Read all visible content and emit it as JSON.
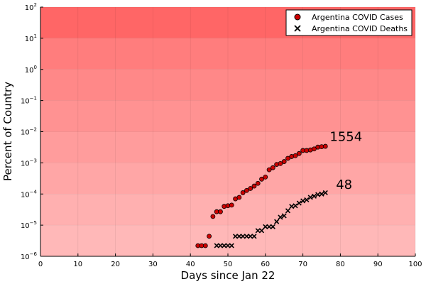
{
  "chart_data": {
    "type": "scatter",
    "xlabel": "Days since Jan 22",
    "ylabel": "Percent of Country",
    "xlim": [
      0,
      100
    ],
    "ylim_exponents": [
      -6,
      2
    ],
    "y_scale": "log10",
    "x_ticks": [
      0,
      10,
      20,
      30,
      40,
      50,
      60,
      70,
      80,
      90,
      100
    ],
    "y_tick_exponents": [
      -6,
      -5,
      -4,
      -3,
      -2,
      -1,
      0,
      1,
      2
    ],
    "y_tick_base": "10",
    "grid": true,
    "legend_position": "top-right",
    "background_bands": [
      "#ffb8b8",
      "#ffb0b0",
      "#ffa6a6",
      "#ff9c9c",
      "#ff9292",
      "#ff8888",
      "#ff7d7d",
      "#ff6666"
    ],
    "series": [
      {
        "name": "Argentina COVID Cases",
        "marker": "circle",
        "color": "#cc0000",
        "x": [
          42,
          43,
          44,
          45,
          46,
          47,
          48,
          49,
          50,
          51,
          52,
          53,
          54,
          55,
          56,
          57,
          58,
          59,
          60,
          61,
          62,
          63,
          64,
          65,
          66,
          67,
          68,
          69,
          70,
          71,
          72,
          73,
          74,
          75,
          76
        ],
        "y": [
          2.2e-06,
          2.2e-06,
          2.2e-06,
          4.4e-06,
          1.9e-05,
          2.7e-05,
          2.7e-05,
          4e-05,
          4.2e-05,
          4.4e-05,
          7e-05,
          7.8e-05,
          0.00011,
          0.00013,
          0.00015,
          0.00018,
          0.00022,
          0.0003,
          0.00035,
          0.0006,
          0.0007,
          0.00089,
          0.00095,
          0.0011,
          0.0014,
          0.0016,
          0.0017,
          0.002,
          0.0025,
          0.0025,
          0.0026,
          0.0028,
          0.0032,
          0.0033,
          0.0034
        ]
      },
      {
        "name": "Argentina COVID Deaths",
        "marker": "x",
        "color": "#000000",
        "x": [
          47,
          48,
          49,
          50,
          51,
          52,
          53,
          54,
          55,
          56,
          57,
          58,
          59,
          60,
          61,
          62,
          63,
          64,
          65,
          66,
          67,
          68,
          69,
          70,
          71,
          72,
          73,
          74,
          75,
          76
        ],
        "y": [
          2.2e-06,
          2.2e-06,
          2.2e-06,
          2.2e-06,
          2.2e-06,
          4.4e-06,
          4.4e-06,
          4.4e-06,
          4.4e-06,
          4.4e-06,
          4.4e-06,
          6.7e-06,
          6.7e-06,
          8.9e-06,
          8.9e-06,
          8.9e-06,
          1.3e-05,
          1.8e-05,
          2e-05,
          2.9e-05,
          4e-05,
          4.2e-05,
          5.1e-05,
          6e-05,
          6.5e-05,
          7.8e-05,
          8.5e-05,
          9.6e-05,
          0.0001,
          0.00011
        ]
      }
    ],
    "annotations": [
      {
        "text": "1554",
        "x": 81.5,
        "y": 0.007
      },
      {
        "text": "48",
        "x": 81,
        "y": 0.0002
      }
    ]
  }
}
